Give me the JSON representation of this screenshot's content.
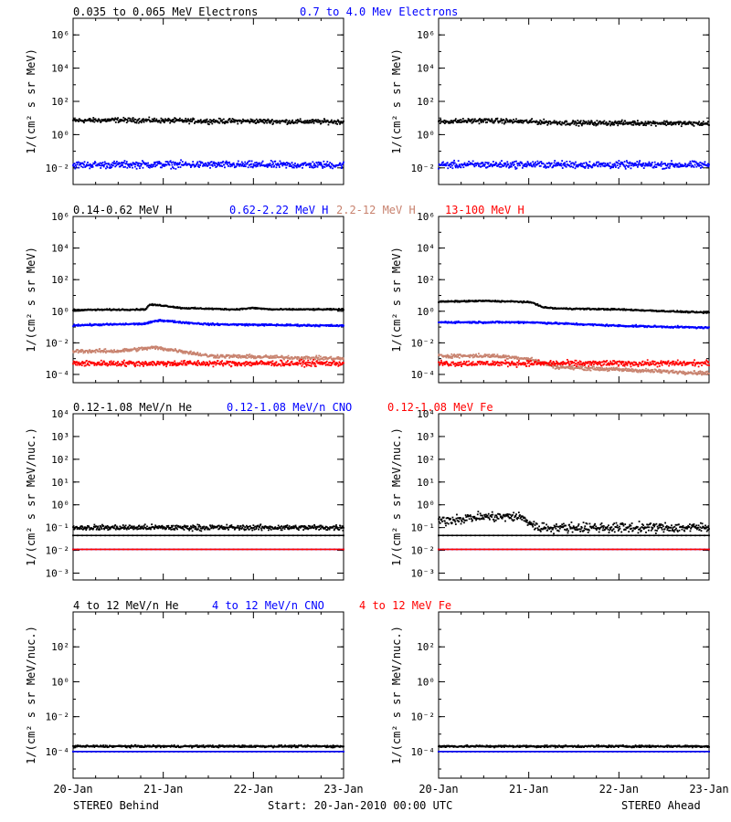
{
  "colors": {
    "black": "#000000",
    "blue": "#0000ff",
    "tan": "#c8826e",
    "red": "#ff0000"
  },
  "footer": {
    "left": "STEREO Behind",
    "center": "Start: 20-Jan-2010 00:00 UTC",
    "right": "STEREO Ahead"
  },
  "chart_data": [
    {
      "type": "scatter",
      "row": "electrons",
      "ylabel": "1/(cm² s sr MeV)",
      "yscale": "log",
      "ylim": [
        0.001,
        10000000
      ],
      "yticks": [
        0.01,
        1,
        100,
        10000,
        1000000
      ],
      "ytick_labels": [
        "10⁻²",
        "10⁰",
        "10²",
        "10⁴",
        "10⁶"
      ],
      "legend": [
        {
          "label": "0.035 to 0.065 MeV Electrons",
          "color": "#000000"
        },
        {
          "label": "0.7 to 4.0 Mev Electrons",
          "color": "#0000ff"
        }
      ],
      "panels": {
        "behind": {
          "series": [
            {
              "name": "0.035 to 0.065 MeV Electrons",
              "color": "#000000",
              "points": [
                [
                  0,
                  7
                ],
                [
                  0.5,
                  7.5
                ],
                [
                  1,
                  7
                ],
                [
                  1.5,
                  6.5
                ],
                [
                  2,
                  6.5
                ],
                [
                  2.5,
                  6
                ],
                [
                  3,
                  6
                ]
              ],
              "scatter": 0.12
            },
            {
              "name": "0.7 to 4.0 Mev Electrons",
              "color": "#0000ff",
              "points": [
                [
                  0,
                  0.015
                ],
                [
                  1,
                  0.016
                ],
                [
                  2,
                  0.015
                ],
                [
                  3,
                  0.015
                ]
              ],
              "scatter": 0.18
            }
          ]
        },
        "ahead": {
          "series": [
            {
              "name": "0.035 to 0.065 MeV Electrons",
              "color": "#000000",
              "points": [
                [
                  0,
                  6
                ],
                [
                  0.5,
                  7
                ],
                [
                  1,
                  6
                ],
                [
                  1.5,
                  5
                ],
                [
                  2,
                  5
                ],
                [
                  2.5,
                  5
                ],
                [
                  3,
                  4.5
                ]
              ],
              "scatter": 0.12
            },
            {
              "name": "0.7 to 4.0 Mev Electrons",
              "color": "#0000ff",
              "points": [
                [
                  0,
                  0.015
                ],
                [
                  1,
                  0.016
                ],
                [
                  2,
                  0.015
                ],
                [
                  3,
                  0.015
                ]
              ],
              "scatter": 0.18
            }
          ]
        }
      }
    },
    {
      "type": "scatter",
      "row": "protons",
      "ylabel": "1/(cm² s sr MeV)",
      "yscale": "log",
      "ylim": [
        3e-05,
        1000000
      ],
      "yticks": [
        0.0001,
        0.01,
        1,
        100,
        10000,
        1000000
      ],
      "ytick_labels": [
        "10⁻⁴",
        "10⁻²",
        "10⁰",
        "10²",
        "10⁴",
        "10⁶"
      ],
      "legend": [
        {
          "label": "0.14-0.62 MeV H",
          "color": "#000000"
        },
        {
          "label": "0.62-2.22 MeV H",
          "color": "#0000ff"
        },
        {
          "label": "2.2-12 MeV H",
          "color": "#c8826e"
        },
        {
          "label": "13-100 MeV H",
          "color": "#ff0000"
        }
      ],
      "panels": {
        "behind": {
          "series": [
            {
              "name": "0.14-0.62 MeV H",
              "color": "#000000",
              "points": [
                [
                  0,
                  1.2
                ],
                [
                  0.8,
                  1.3
                ],
                [
                  0.85,
                  2.6
                ],
                [
                  1.0,
                  2.3
                ],
                [
                  1.2,
                  1.6
                ],
                [
                  1.8,
                  1.3
                ],
                [
                  2.0,
                  1.6
                ],
                [
                  2.2,
                  1.3
                ],
                [
                  3,
                  1.3
                ]
              ],
              "scatter": 0.04
            },
            {
              "name": "0.62-2.22 MeV H",
              "color": "#0000ff",
              "points": [
                [
                  0,
                  0.13
                ],
                [
                  0.8,
                  0.16
                ],
                [
                  0.95,
                  0.27
                ],
                [
                  1.2,
                  0.2
                ],
                [
                  1.5,
                  0.15
                ],
                [
                  3,
                  0.12
                ]
              ],
              "scatter": 0.05
            },
            {
              "name": "2.2-12 MeV H",
              "color": "#c8826e",
              "points": [
                [
                  0,
                  0.003
                ],
                [
                  0.5,
                  0.003
                ],
                [
                  0.9,
                  0.005
                ],
                [
                  1.2,
                  0.003
                ],
                [
                  1.5,
                  0.0015
                ],
                [
                  3,
                  0.001
                ]
              ],
              "scatter": 0.1
            },
            {
              "name": "13-100 MeV H",
              "color": "#ff0000",
              "points": [
                [
                  0,
                  0.0005
                ],
                [
                  1.5,
                  0.0005
                ],
                [
                  3,
                  0.0005
                ]
              ],
              "scatter": 0.15
            }
          ]
        },
        "ahead": {
          "series": [
            {
              "name": "0.14-0.62 MeV H",
              "color": "#000000",
              "points": [
                [
                  0,
                  4
                ],
                [
                  0.5,
                  4.5
                ],
                [
                  0.9,
                  4
                ],
                [
                  1.05,
                  3.5
                ],
                [
                  1.15,
                  1.8
                ],
                [
                  1.3,
                  1.5
                ],
                [
                  2,
                  1.3
                ],
                [
                  3,
                  0.8
                ]
              ],
              "scatter": 0.04
            },
            {
              "name": "0.62-2.22 MeV H",
              "color": "#0000ff",
              "points": [
                [
                  0,
                  0.2
                ],
                [
                  1,
                  0.2
                ],
                [
                  2,
                  0.12
                ],
                [
                  3,
                  0.09
                ]
              ],
              "scatter": 0.05
            },
            {
              "name": "2.2-12 MeV H",
              "color": "#c8826e",
              "points": [
                [
                  0,
                  0.0015
                ],
                [
                  0.6,
                  0.0015
                ],
                [
                  1.0,
                  0.001
                ],
                [
                  1.3,
                  0.0003
                ],
                [
                  2,
                  0.0002
                ],
                [
                  3,
                  0.00012
                ]
              ],
              "scatter": 0.1
            },
            {
              "name": "13-100 MeV H",
              "color": "#ff0000",
              "points": [
                [
                  0,
                  0.0005
                ],
                [
                  1.5,
                  0.0005
                ],
                [
                  3,
                  0.0005
                ]
              ],
              "scatter": 0.15
            }
          ]
        }
      }
    },
    {
      "type": "scatter",
      "row": "heavy-low",
      "ylabel": "1/(cm² s sr MeV/nuc.)",
      "yscale": "log",
      "ylim": [
        0.0005,
        10000
      ],
      "yticks": [
        0.001,
        0.01,
        0.1,
        1,
        10,
        100,
        1000,
        10000
      ],
      "ytick_labels": [
        "10⁻³",
        "10⁻²",
        "10⁻¹",
        "10⁰",
        "10¹",
        "10²",
        "10³",
        "10⁴"
      ],
      "legend": [
        {
          "label": "0.12-1.08 MeV/n He",
          "color": "#000000"
        },
        {
          "label": "0.12-1.08 MeV/n CNO",
          "color": "#0000ff"
        },
        {
          "label": "0.12-1.08 MeV Fe",
          "color": "#ff0000"
        }
      ],
      "panels": {
        "behind": {
          "series": [
            {
              "name": "0.12-1.08 MeV/n He",
              "color": "#000000",
              "points": [
                [
                  0,
                  0.045
                ],
                [
                  3,
                  0.045
                ]
              ],
              "scatter": 0.0
            },
            {
              "name": "0.12-1.08 MeV/n He",
              "color": "#000000",
              "points": [
                [
                  0,
                  0.1
                ],
                [
                  3,
                  0.1
                ]
              ],
              "scatter": 0.1
            },
            {
              "name": "0.12-1.08 MeV/n CNO",
              "color": "#0000ff",
              "points": [
                [
                  0,
                  0.011
                ],
                [
                  3,
                  0.011
                ]
              ],
              "scatter": 0.0
            },
            {
              "name": "0.12-1.08 MeV Fe",
              "color": "#ff0000",
              "points": [
                [
                  0,
                  0.011
                ],
                [
                  3,
                  0.011
                ]
              ],
              "scatter": 0.0
            }
          ]
        },
        "ahead": {
          "series": [
            {
              "name": "0.12-1.08 MeV/n He",
              "color": "#000000",
              "points": [
                [
                  0,
                  0.045
                ],
                [
                  3,
                  0.045
                ]
              ],
              "scatter": 0.0
            },
            {
              "name": "0.12-1.08 MeV/n He",
              "color": "#000000",
              "points": [
                [
                  0,
                  0.2
                ],
                [
                  0.5,
                  0.3
                ],
                [
                  0.9,
                  0.3
                ],
                [
                  1.1,
                  0.1
                ],
                [
                  3,
                  0.1
                ]
              ],
              "scatter": 0.18
            },
            {
              "name": "0.12-1.08 MeV/n CNO",
              "color": "#0000ff",
              "points": [
                [
                  0,
                  0.011
                ],
                [
                  3,
                  0.011
                ]
              ],
              "scatter": 0.0
            },
            {
              "name": "0.12-1.08 MeV Fe",
              "color": "#ff0000",
              "points": [
                [
                  0,
                  0.011
                ],
                [
                  3,
                  0.011
                ]
              ],
              "scatter": 0.0
            }
          ]
        }
      }
    },
    {
      "type": "scatter",
      "row": "heavy-high",
      "ylabel": "1/(cm² s sr MeV/nuc.)",
      "yscale": "log",
      "ylim": [
        3e-06,
        10000
      ],
      "yticks": [
        0.0001,
        0.01,
        1,
        100
      ],
      "ytick_labels": [
        "10⁻⁴",
        "10⁻²",
        "10⁰",
        "10²"
      ],
      "xticks": [
        0,
        1,
        2,
        3
      ],
      "xtick_labels": [
        "20-Jan",
        "21-Jan",
        "22-Jan",
        "23-Jan"
      ],
      "legend": [
        {
          "label": "4 to 12 MeV/n He",
          "color": "#000000"
        },
        {
          "label": "4 to 12 MeV/n CNO",
          "color": "#0000ff"
        },
        {
          "label": "4 to 12 MeV Fe",
          "color": "#ff0000"
        }
      ],
      "panels": {
        "behind": {
          "series": [
            {
              "name": "4 to 12 MeV/n He",
              "color": "#000000",
              "points": [
                [
                  0,
                  0.0001
                ],
                [
                  3,
                  0.0001
                ]
              ],
              "scatter": 0.0
            },
            {
              "name": "4 to 12 MeV/n He",
              "color": "#000000",
              "points": [
                [
                  0,
                  0.0002
                ],
                [
                  3,
                  0.0002
                ]
              ],
              "scatter": 0.05
            },
            {
              "name": "4 to 12 MeV/n CNO",
              "color": "#0000ff",
              "points": [
                [
                  0,
                  0.0001
                ],
                [
                  3,
                  0.0001
                ]
              ],
              "scatter": 0.0
            }
          ]
        },
        "ahead": {
          "series": [
            {
              "name": "4 to 12 MeV/n He",
              "color": "#000000",
              "points": [
                [
                  0,
                  0.0001
                ],
                [
                  3,
                  0.0001
                ]
              ],
              "scatter": 0.0
            },
            {
              "name": "4 to 12 MeV/n He",
              "color": "#000000",
              "points": [
                [
                  0,
                  0.0002
                ],
                [
                  3,
                  0.0002
                ]
              ],
              "scatter": 0.05
            },
            {
              "name": "4 to 12 MeV/n CNO",
              "color": "#0000ff",
              "points": [
                [
                  0,
                  0.0001
                ],
                [
                  3,
                  0.0001
                ]
              ],
              "scatter": 0.0
            }
          ]
        }
      }
    }
  ]
}
